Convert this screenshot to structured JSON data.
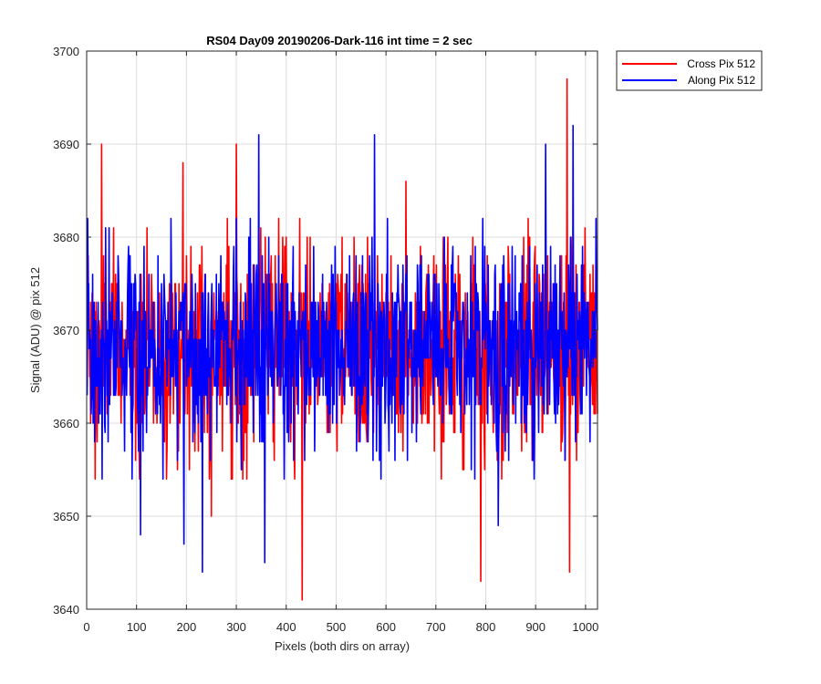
{
  "chart_data": {
    "type": "line",
    "title": "RS04 Day09 20190206-Dark-116 int time = 2 sec",
    "xlabel": "Pixels (both dirs on array)",
    "ylabel": "Signal (ADU) @ pix 512",
    "xlim": [
      0,
      1024
    ],
    "ylim": [
      3640,
      3700
    ],
    "x_ticks": [
      0,
      100,
      200,
      300,
      400,
      500,
      600,
      700,
      800,
      900,
      1000
    ],
    "y_ticks": [
      3640,
      3650,
      3660,
      3670,
      3680,
      3690,
      3700
    ],
    "x_tick_labels": [
      "0",
      "100",
      "200",
      "300",
      "400",
      "500",
      "600",
      "700",
      "800",
      "900",
      "1000"
    ],
    "y_tick_labels": [
      "3640",
      "3650",
      "3660",
      "3670",
      "3680",
      "3690",
      "3700"
    ],
    "grid": true,
    "legend_position": "top-right outside",
    "x": {
      "start": 1,
      "end": 1024,
      "step": 1
    },
    "series": [
      {
        "name": "Cross Pix 512",
        "color": "#ff0000",
        "mean": 3668,
        "noise_std": 5.5,
        "notable_points": [
          [
            30,
            3690
          ],
          [
            193,
            3688
          ],
          [
            300,
            3690
          ],
          [
            432,
            3641
          ],
          [
            790,
            3643
          ],
          [
            963,
            3697
          ],
          [
            968,
            3644
          ],
          [
            17,
            3654
          ],
          [
            250,
            3650
          ],
          [
            640,
            3686
          ]
        ]
      },
      {
        "name": "Along Pix 512",
        "color": "#0000ff",
        "mean": 3668,
        "noise_std": 5.5,
        "notable_points": [
          [
            232,
            3644
          ],
          [
            357,
            3645
          ],
          [
            345,
            3691
          ],
          [
            577,
            3691
          ],
          [
            975,
            3692
          ],
          [
            920,
            3690
          ],
          [
            108,
            3648
          ],
          [
            195,
            3647
          ],
          [
            825,
            3649
          ]
        ]
      }
    ]
  }
}
